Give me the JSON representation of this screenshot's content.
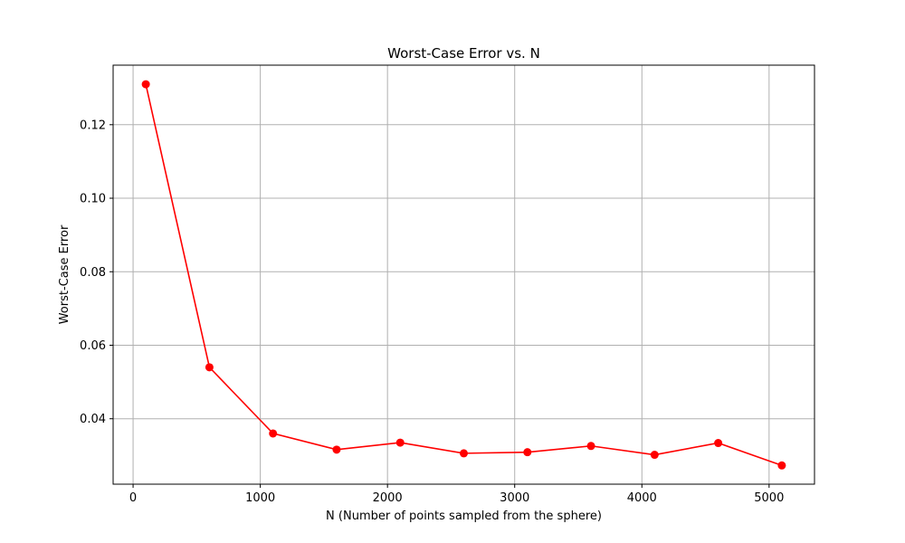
{
  "chart_data": {
    "type": "line",
    "title": "Worst-Case Error vs. N",
    "xlabel": "N (Number of points sampled from the sphere)",
    "ylabel": "Worst-Case Error",
    "x": [
      100,
      600,
      1100,
      1600,
      2100,
      2600,
      3100,
      3600,
      4100,
      4600,
      5100
    ],
    "series": [
      {
        "values": [
          0.131,
          0.054,
          0.036,
          0.0316,
          0.0335,
          0.0306,
          0.0309,
          0.0326,
          0.0302,
          0.0334,
          0.0273
        ],
        "color": "#ff0000",
        "marker": "circle"
      }
    ],
    "xlim": [
      -157,
      5357
    ],
    "ylim": [
      0.0222,
      0.1362
    ],
    "xticks": [
      0,
      1000,
      2000,
      3000,
      4000,
      5000
    ],
    "xtick_labels": [
      "0",
      "1000",
      "2000",
      "3000",
      "4000",
      "5000"
    ],
    "yticks": [
      0.04,
      0.06,
      0.08,
      0.1,
      0.12
    ],
    "ytick_labels": [
      "0.04",
      "0.06",
      "0.08",
      "0.10",
      "0.12"
    ],
    "grid": true,
    "legend": false
  }
}
